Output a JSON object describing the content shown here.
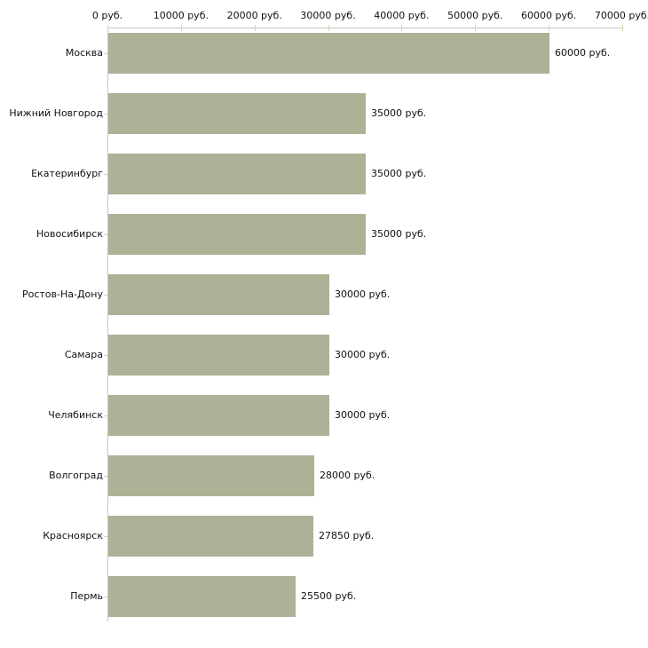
{
  "chart_data": {
    "type": "bar",
    "orientation": "horizontal",
    "title": "",
    "xlabel": "",
    "ylabel": "",
    "xlim": [
      0,
      70000
    ],
    "grid": false,
    "legend": null,
    "x_axis_ticks": [
      {
        "value": 0,
        "label": "0 руб."
      },
      {
        "value": 10000,
        "label": "10000 руб."
      },
      {
        "value": 20000,
        "label": "20000 руб."
      },
      {
        "value": 30000,
        "label": "30000 руб."
      },
      {
        "value": 40000,
        "label": "40000 руб."
      },
      {
        "value": 50000,
        "label": "50000 руб."
      },
      {
        "value": 60000,
        "label": "60000 руб."
      },
      {
        "value": 70000,
        "label": "70000 руб."
      }
    ],
    "categories": [
      "Москва",
      "Нижний Новгород",
      "Екатеринбург",
      "Новосибирск",
      "Ростов-На-Дону",
      "Самара",
      "Челябинск",
      "Волгоград",
      "Красноярск",
      "Пермь"
    ],
    "values": [
      60000,
      35000,
      35000,
      35000,
      30000,
      30000,
      30000,
      28000,
      27850,
      25500
    ],
    "value_labels": [
      "60000 руб.",
      "35000 руб.",
      "35000 руб.",
      "35000 руб.",
      "30000 руб.",
      "30000 руб.",
      "30000 руб.",
      "28000 руб.",
      "27850 руб.",
      "25500 руб."
    ],
    "colors": {
      "bar": "#acb296",
      "axis_line": "#c8c8c8",
      "tick_mark": "#d6d3ae",
      "text": "#111111"
    }
  }
}
